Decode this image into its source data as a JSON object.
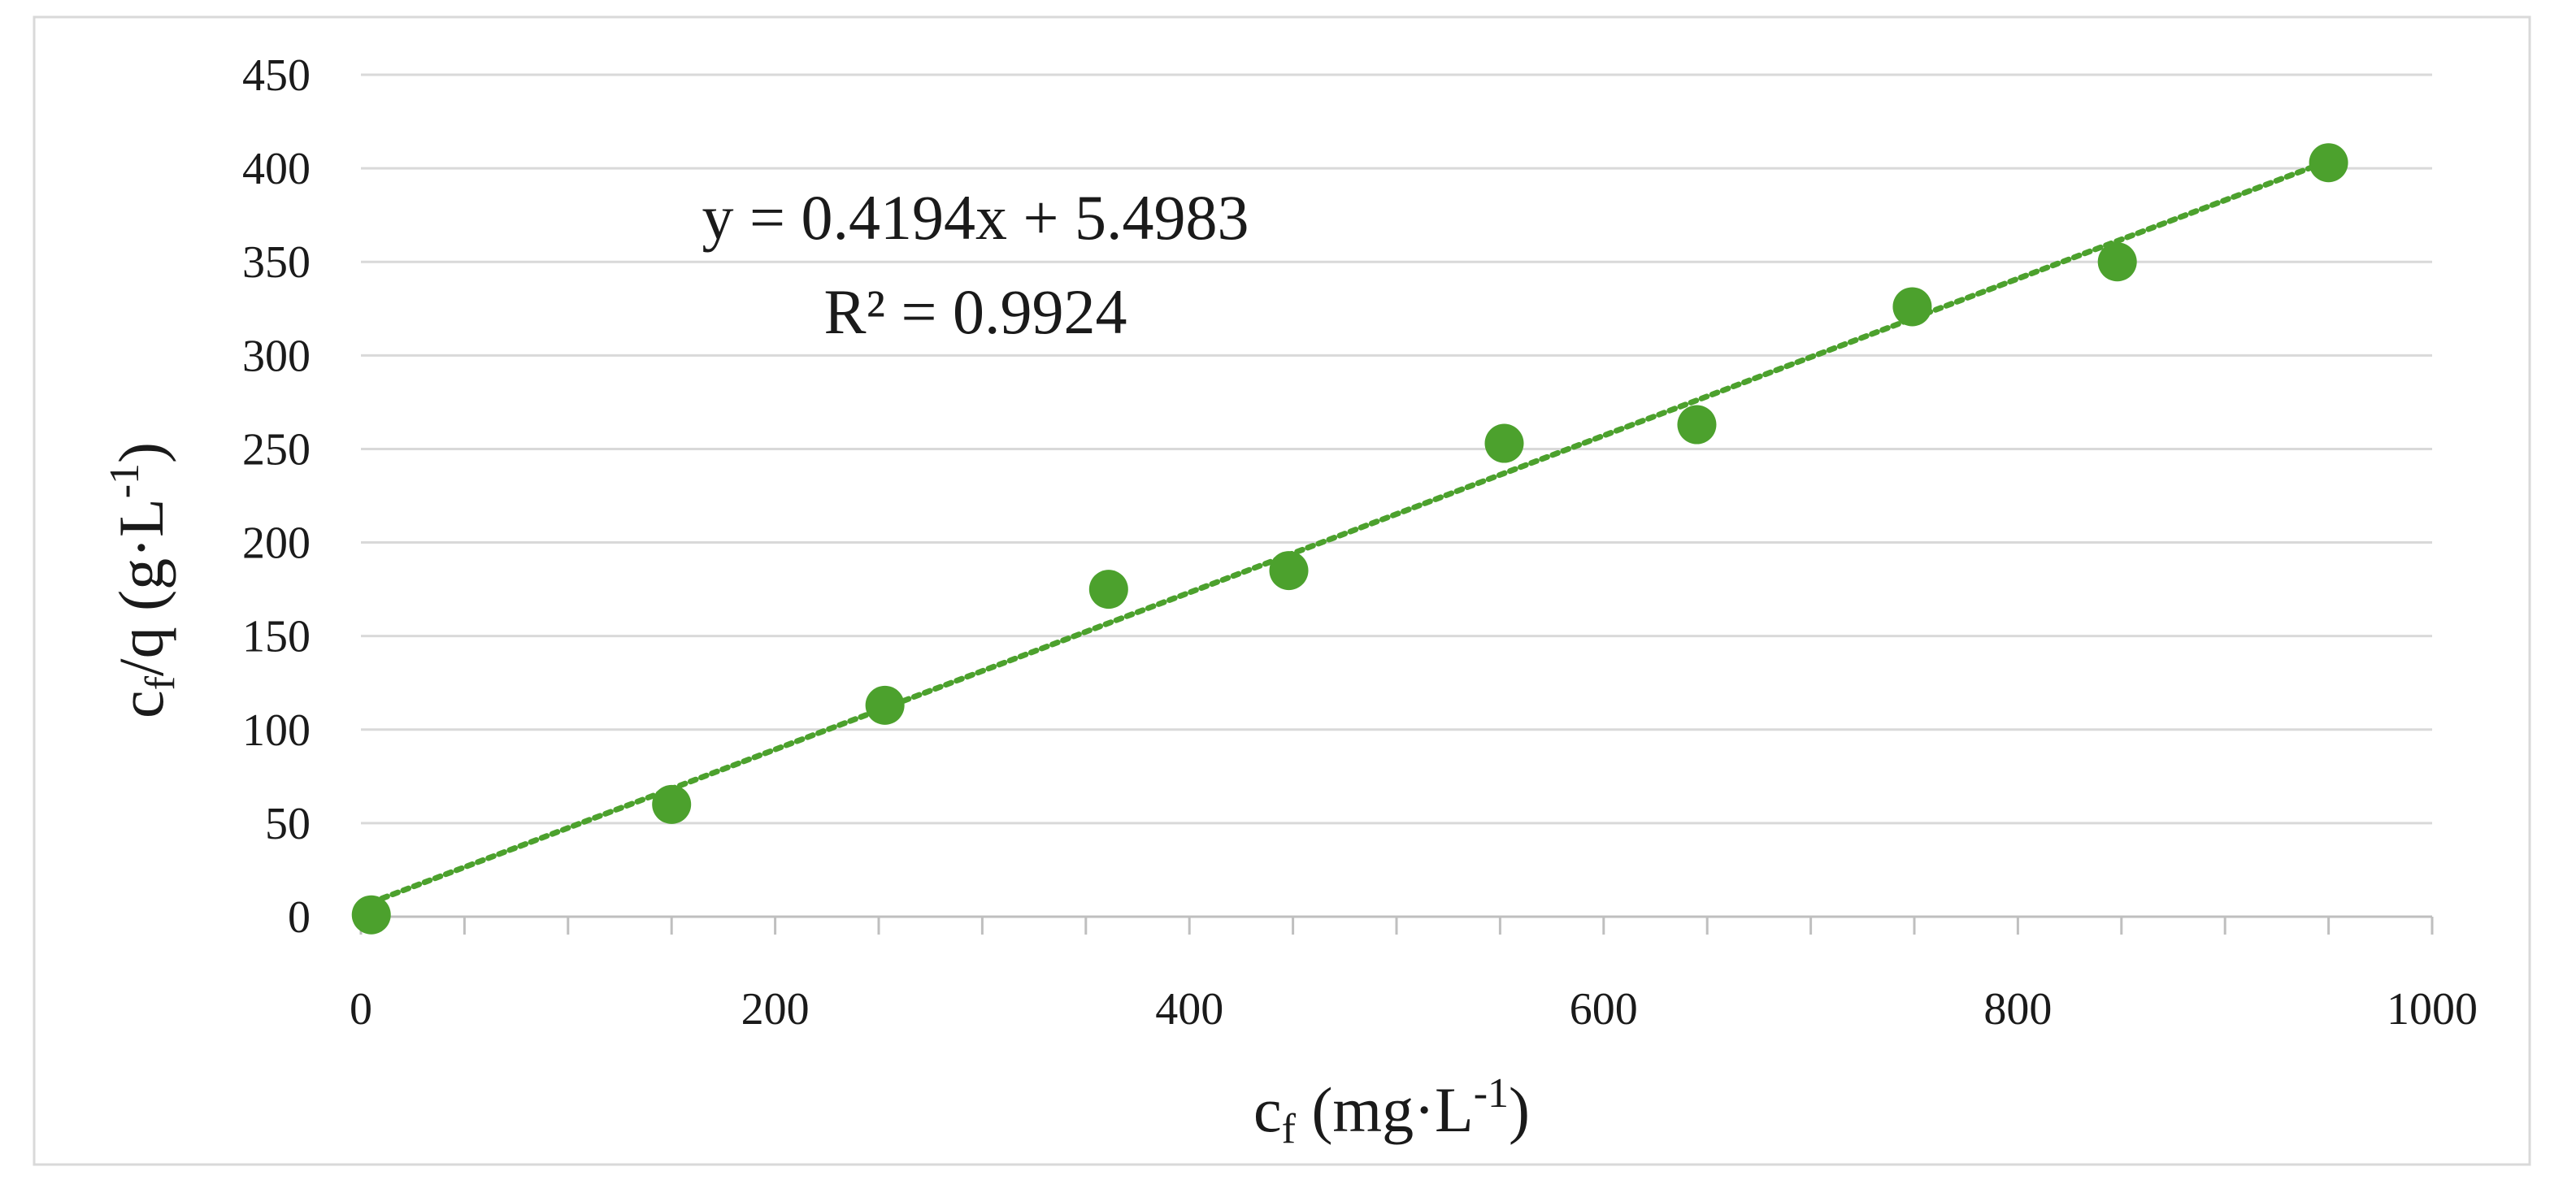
{
  "chart_data": {
    "type": "scatter",
    "title": "",
    "xlabel": {
      "main": "c",
      "sub": "f",
      "rest": " (mg·L",
      "sup": "-1",
      "close": ")"
    },
    "ylabel": {
      "main": "c",
      "sub": "f",
      "rest": "/q (g·L",
      "sup": "-1",
      "close": ")"
    },
    "xlim": [
      0,
      1000
    ],
    "ylim": [
      0,
      450
    ],
    "x_ticks": [
      0,
      200,
      400,
      600,
      800,
      1000
    ],
    "x_minor_step": 50,
    "y_ticks": [
      0,
      50,
      100,
      150,
      200,
      250,
      300,
      350,
      400,
      450
    ],
    "grid": "horizontal",
    "colors": {
      "points": "#4ca12d",
      "trendline": "#4ca12d",
      "grid": "#d9d9d9",
      "axis": "#bfbfbf"
    },
    "series": [
      {
        "x": [
          5,
          150,
          253,
          361,
          448,
          552,
          645,
          749,
          848,
          950
        ],
        "y": [
          1,
          60,
          113,
          175,
          185,
          253,
          263,
          326,
          350,
          403
        ]
      }
    ],
    "trendline": {
      "type": "linear",
      "slope": 0.4194,
      "intercept": 5.4983,
      "equation_text": "y = 0.4194x + 5.4983",
      "r2_text": "R² = 0.9924"
    }
  }
}
